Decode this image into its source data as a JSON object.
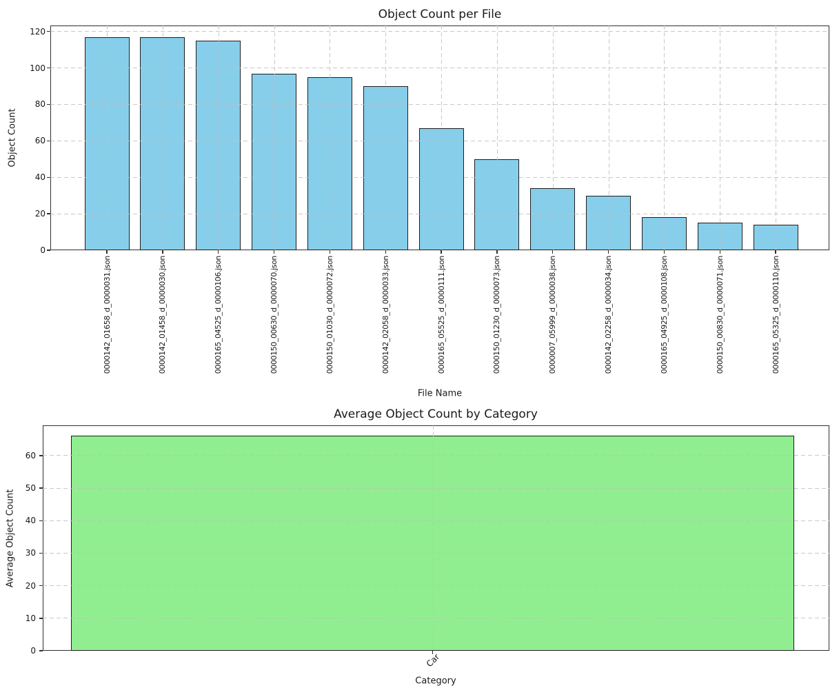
{
  "figure": {
    "background_color": "#ffffff",
    "text_color": "#1a1a1a",
    "grid_color": "#bfbfbf",
    "spine_color": "#2e2e2e"
  },
  "chart_data": [
    {
      "type": "bar",
      "title": "Object Count per File",
      "xlabel": "File Name",
      "ylabel": "Object Count",
      "categories": [
        "0000142_01658_d_0000031.json",
        "0000142_01458_d_0000030.json",
        "0000165_04525_d_0000106.json",
        "0000150_00630_d_0000070.json",
        "0000150_01030_d_0000072.json",
        "0000142_02058_d_0000033.json",
        "0000165_05525_d_0000111.json",
        "0000150_01230_d_0000073.json",
        "0000007_05999_d_0000038.json",
        "0000142_02258_d_0000034.json",
        "0000165_04925_d_0000108.json",
        "0000150_00830_d_0000071.json",
        "0000165_05325_d_0000110.json"
      ],
      "values": [
        117,
        117,
        115,
        97,
        95,
        90,
        67,
        50,
        34,
        30,
        18,
        15,
        14
      ],
      "ylim": [
        0,
        123.3
      ],
      "yticks": [
        0,
        20,
        40,
        60,
        80,
        100,
        120
      ],
      "bar_color": "#87CEEB",
      "bar_edge_color": "#1c1c1c",
      "grid": true,
      "legend": "none",
      "xtick_rotation": 90
    },
    {
      "type": "bar",
      "title": "Average Object Count by Category",
      "xlabel": "Category",
      "ylabel": "Average Object Count",
      "categories": [
        "Car"
      ],
      "values": [
        66.08
      ],
      "ylim": [
        0,
        69.3
      ],
      "yticks": [
        0,
        10,
        20,
        30,
        40,
        50,
        60
      ],
      "bar_color": "#90EE90",
      "bar_edge_color": "#1c1c1c",
      "grid": true,
      "legend": "none",
      "xtick_rotation": 45
    }
  ]
}
